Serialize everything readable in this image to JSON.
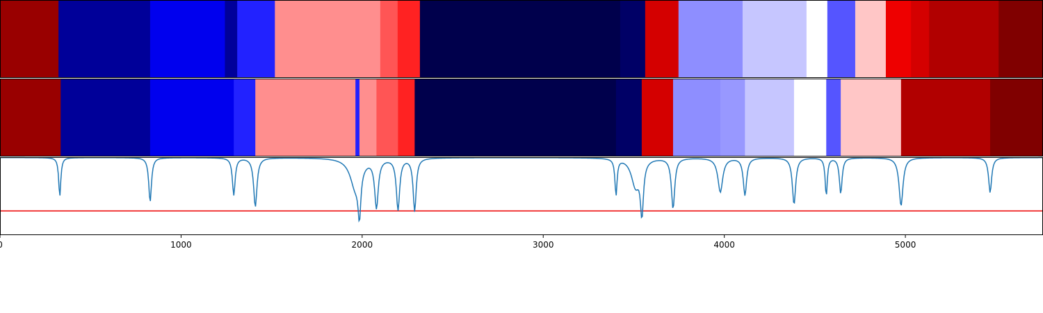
{
  "chart_data": {
    "type": "heatmap",
    "xlim": [
      0,
      5760
    ],
    "x_ticks": [
      0,
      1000,
      2000,
      3000,
      4000,
      5000
    ],
    "x_tick_labels": [
      "0",
      "1000",
      "2000",
      "3000",
      "4000",
      "5000"
    ],
    "segmentation_rows": [
      {
        "segments": [
          {
            "start": 0,
            "end": 323,
            "color": "#990000"
          },
          {
            "start": 323,
            "end": 829,
            "color": "#000099"
          },
          {
            "start": 829,
            "end": 1242,
            "color": "#0000ee"
          },
          {
            "start": 1242,
            "end": 1310,
            "color": "#000099"
          },
          {
            "start": 1310,
            "end": 1518,
            "color": "#2222ff"
          },
          {
            "start": 1518,
            "end": 2100,
            "color": "#ff8e8e"
          },
          {
            "start": 2100,
            "end": 2196,
            "color": "#ff5555"
          },
          {
            "start": 2196,
            "end": 2319,
            "color": "#ff2222"
          },
          {
            "start": 2319,
            "end": 3425,
            "color": "#00004c"
          },
          {
            "start": 3425,
            "end": 3563,
            "color": "#000066"
          },
          {
            "start": 3563,
            "end": 3747,
            "color": "#d40000"
          },
          {
            "start": 3747,
            "end": 4101,
            "color": "#8e8eff"
          },
          {
            "start": 4101,
            "end": 4454,
            "color": "#c6c6ff"
          },
          {
            "start": 4454,
            "end": 4569,
            "color": "#ffffff"
          },
          {
            "start": 4569,
            "end": 4723,
            "color": "#5555ff"
          },
          {
            "start": 4723,
            "end": 4892,
            "color": "#ffc6c6"
          },
          {
            "start": 4892,
            "end": 5031,
            "color": "#ee0000"
          },
          {
            "start": 5031,
            "end": 5131,
            "color": "#d40000"
          },
          {
            "start": 5131,
            "end": 5515,
            "color": "#b10000"
          },
          {
            "start": 5515,
            "end": 5760,
            "color": "#800000"
          }
        ]
      },
      {
        "segments": [
          {
            "start": 0,
            "end": 335,
            "color": "#990000"
          },
          {
            "start": 335,
            "end": 829,
            "color": "#000099"
          },
          {
            "start": 829,
            "end": 1291,
            "color": "#0000ee"
          },
          {
            "start": 1291,
            "end": 1410,
            "color": "#2222ff"
          },
          {
            "start": 1410,
            "end": 1963,
            "color": "#ff8e8e"
          },
          {
            "start": 1963,
            "end": 1985,
            "color": "#2222ff"
          },
          {
            "start": 1985,
            "end": 2079,
            "color": "#ff8e8e"
          },
          {
            "start": 2079,
            "end": 2198,
            "color": "#ff5555"
          },
          {
            "start": 2198,
            "end": 2290,
            "color": "#ff2222"
          },
          {
            "start": 2290,
            "end": 3402,
            "color": "#00004c"
          },
          {
            "start": 3402,
            "end": 3544,
            "color": "#000066"
          },
          {
            "start": 3544,
            "end": 3717,
            "color": "#d40000"
          },
          {
            "start": 3717,
            "end": 3978,
            "color": "#8e8eff"
          },
          {
            "start": 3978,
            "end": 4114,
            "color": "#9898ff"
          },
          {
            "start": 4114,
            "end": 4385,
            "color": "#c6c6ff"
          },
          {
            "start": 4385,
            "end": 4563,
            "color": "#ffffff"
          },
          {
            "start": 4563,
            "end": 4643,
            "color": "#5555ff"
          },
          {
            "start": 4643,
            "end": 4976,
            "color": "#ffc6c6"
          },
          {
            "start": 4976,
            "end": 5468,
            "color": "#b10000"
          },
          {
            "start": 5468,
            "end": 5760,
            "color": "#800000"
          }
        ]
      }
    ],
    "score_curve": {
      "color": "#1f77b4",
      "ylim": [
        0,
        1
      ],
      "threshold": 0.31,
      "threshold_color": "#ee0000",
      "baseline": 0.995,
      "dips": [
        {
          "x": 330,
          "depth": 0.5,
          "width": 7
        },
        {
          "x": 829,
          "depth": 0.57,
          "width": 9
        },
        {
          "x": 1291,
          "depth": 0.48,
          "width": 9
        },
        {
          "x": 1410,
          "depth": 0.63,
          "width": 11
        },
        {
          "x": 1963,
          "depth": 0.38,
          "width": 35
        },
        {
          "x": 1985,
          "depth": 0.55,
          "width": 9
        },
        {
          "x": 2079,
          "depth": 0.62,
          "width": 12
        },
        {
          "x": 2198,
          "depth": 0.66,
          "width": 11
        },
        {
          "x": 2290,
          "depth": 0.68,
          "width": 10
        },
        {
          "x": 3402,
          "depth": 0.47,
          "width": 7
        },
        {
          "x": 3510,
          "depth": 0.36,
          "width": 28
        },
        {
          "x": 3545,
          "depth": 0.65,
          "width": 10
        },
        {
          "x": 3717,
          "depth": 0.65,
          "width": 11
        },
        {
          "x": 3978,
          "depth": 0.44,
          "width": 16
        },
        {
          "x": 4114,
          "depth": 0.48,
          "width": 11
        },
        {
          "x": 4385,
          "depth": 0.6,
          "width": 11
        },
        {
          "x": 4563,
          "depth": 0.49,
          "width": 7
        },
        {
          "x": 4643,
          "depth": 0.46,
          "width": 9
        },
        {
          "x": 4976,
          "depth": 0.62,
          "width": 13
        },
        {
          "x": 5468,
          "depth": 0.45,
          "width": 10
        }
      ]
    }
  }
}
